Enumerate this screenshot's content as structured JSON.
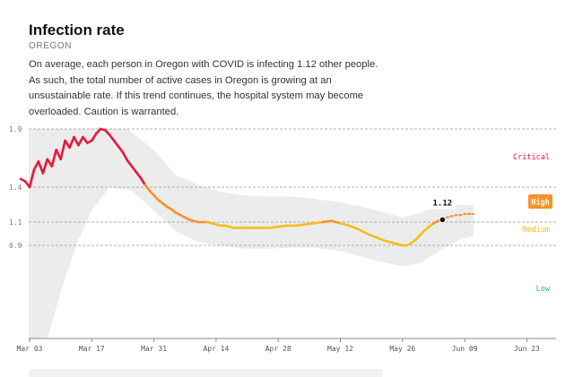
{
  "header": {
    "title": "Infection rate",
    "subtitle": "OREGON",
    "description": "On average, each person in Oregon with COVID is infecting 1.12 other people. As such, the total number of active cases in Oregon is growing at an unsustainable rate. If this trend continues, the hospital system may become overloaded. Caution is warranted."
  },
  "colors": {
    "critical": "#e8163b",
    "high": "#f5922a",
    "medium": "#f6bd16",
    "low": "#2bbf5a",
    "band": "#ececec",
    "grid": "#999999"
  },
  "chart_data": {
    "type": "line",
    "x_ticks": [
      "Mar 03",
      "Mar 17",
      "Mar 31",
      "Apr 14",
      "Apr 28",
      "May 12",
      "May 26",
      "Jun 09",
      "Jun 23"
    ],
    "y_ticks": [
      "1.9",
      "1.4",
      "1.1",
      "0.9"
    ],
    "ylim": [
      0.0,
      1.9
    ],
    "zones": [
      {
        "name": "Critical",
        "y": 1.9
      },
      {
        "name": "High",
        "y": 1.4
      },
      {
        "name": "Medium",
        "y": 1.1
      },
      {
        "name": "Low",
        "y": 0.9
      }
    ],
    "zone_labels": [
      "Critical",
      "High",
      "Medium",
      "Low"
    ],
    "current": {
      "date": "2020-06-04",
      "value": 1.12,
      "label": "1.12"
    },
    "series": [
      {
        "values": [
          [
            "2020-03-01",
            1.47
          ],
          [
            "2020-03-02",
            1.45
          ],
          [
            "2020-03-03",
            1.4
          ],
          [
            "2020-03-04",
            1.55
          ],
          [
            "2020-03-05",
            1.62
          ],
          [
            "2020-03-06",
            1.52
          ],
          [
            "2020-03-07",
            1.64
          ],
          [
            "2020-03-08",
            1.58
          ],
          [
            "2020-03-09",
            1.72
          ],
          [
            "2020-03-10",
            1.64
          ],
          [
            "2020-03-11",
            1.8
          ],
          [
            "2020-03-12",
            1.74
          ],
          [
            "2020-03-13",
            1.83
          ],
          [
            "2020-03-14",
            1.76
          ],
          [
            "2020-03-15",
            1.83
          ],
          [
            "2020-03-16",
            1.78
          ],
          [
            "2020-03-17",
            1.8
          ],
          [
            "2020-03-18",
            1.86
          ],
          [
            "2020-03-19",
            1.9
          ],
          [
            "2020-03-20",
            1.89
          ],
          [
            "2020-03-21",
            1.85
          ],
          [
            "2020-03-22",
            1.8
          ],
          [
            "2020-03-23",
            1.75
          ],
          [
            "2020-03-24",
            1.7
          ],
          [
            "2020-03-25",
            1.63
          ],
          [
            "2020-03-26",
            1.58
          ],
          [
            "2020-03-27",
            1.53
          ],
          [
            "2020-03-28",
            1.48
          ],
          [
            "2020-03-29",
            1.42
          ],
          [
            "2020-03-30",
            1.37
          ],
          [
            "2020-03-31",
            1.33
          ],
          [
            "2020-04-01",
            1.29
          ],
          [
            "2020-04-02",
            1.26
          ],
          [
            "2020-04-03",
            1.23
          ],
          [
            "2020-04-04",
            1.21
          ],
          [
            "2020-04-05",
            1.18
          ],
          [
            "2020-04-06",
            1.16
          ],
          [
            "2020-04-07",
            1.14
          ],
          [
            "2020-04-08",
            1.12
          ],
          [
            "2020-04-09",
            1.11
          ],
          [
            "2020-04-10",
            1.1
          ],
          [
            "2020-04-11",
            1.1
          ],
          [
            "2020-04-12",
            1.1
          ],
          [
            "2020-04-13",
            1.09
          ],
          [
            "2020-04-14",
            1.08
          ],
          [
            "2020-04-15",
            1.07
          ],
          [
            "2020-04-16",
            1.07
          ],
          [
            "2020-04-17",
            1.06
          ],
          [
            "2020-04-18",
            1.05
          ],
          [
            "2020-04-20",
            1.05
          ],
          [
            "2020-04-22",
            1.05
          ],
          [
            "2020-04-24",
            1.05
          ],
          [
            "2020-04-26",
            1.05
          ],
          [
            "2020-04-28",
            1.06
          ],
          [
            "2020-04-30",
            1.07
          ],
          [
            "2020-05-02",
            1.07
          ],
          [
            "2020-05-04",
            1.08
          ],
          [
            "2020-05-06",
            1.09
          ],
          [
            "2020-05-08",
            1.1
          ],
          [
            "2020-05-10",
            1.11
          ],
          [
            "2020-05-12",
            1.09
          ],
          [
            "2020-05-14",
            1.07
          ],
          [
            "2020-05-16",
            1.04
          ],
          [
            "2020-05-18",
            1.0
          ],
          [
            "2020-05-20",
            0.97
          ],
          [
            "2020-05-22",
            0.94
          ],
          [
            "2020-05-24",
            0.92
          ],
          [
            "2020-05-25",
            0.91
          ],
          [
            "2020-05-26",
            0.9
          ],
          [
            "2020-05-27",
            0.9
          ],
          [
            "2020-05-28",
            0.92
          ],
          [
            "2020-05-29",
            0.95
          ],
          [
            "2020-05-30",
            0.99
          ],
          [
            "2020-05-31",
            1.03
          ],
          [
            "2020-06-01",
            1.06
          ],
          [
            "2020-06-02",
            1.09
          ],
          [
            "2020-06-03",
            1.11
          ],
          [
            "2020-06-04",
            1.12
          ]
        ]
      },
      {
        "style": "dotted",
        "values": [
          [
            "2020-06-04",
            1.12
          ],
          [
            "2020-06-05",
            1.14
          ],
          [
            "2020-06-06",
            1.15
          ],
          [
            "2020-06-07",
            1.16
          ],
          [
            "2020-06-08",
            1.16
          ],
          [
            "2020-06-09",
            1.17
          ],
          [
            "2020-06-10",
            1.17
          ],
          [
            "2020-06-11",
            1.17
          ]
        ]
      }
    ],
    "band": {
      "upper": [
        [
          "2020-03-01",
          1.9
        ],
        [
          "2020-03-20",
          1.9
        ],
        [
          "2020-03-25",
          1.9
        ],
        [
          "2020-03-31",
          1.72
        ],
        [
          "2020-04-05",
          1.5
        ],
        [
          "2020-04-10",
          1.42
        ],
        [
          "2020-04-15",
          1.36
        ],
        [
          "2020-04-20",
          1.33
        ],
        [
          "2020-04-25",
          1.32
        ],
        [
          "2020-05-01",
          1.32
        ],
        [
          "2020-05-06",
          1.3
        ],
        [
          "2020-05-12",
          1.27
        ],
        [
          "2020-05-17",
          1.23
        ],
        [
          "2020-05-22",
          1.18
        ],
        [
          "2020-05-26",
          1.14
        ],
        [
          "2020-05-30",
          1.18
        ],
        [
          "2020-06-04",
          1.26
        ],
        [
          "2020-06-08",
          1.25
        ],
        [
          "2020-06-11",
          1.24
        ]
      ],
      "lower": [
        [
          "2020-03-01",
          0.0
        ],
        [
          "2020-03-04",
          0.0
        ],
        [
          "2020-03-07",
          0.1
        ],
        [
          "2020-03-10",
          0.5
        ],
        [
          "2020-03-14",
          0.95
        ],
        [
          "2020-03-17",
          1.2
        ],
        [
          "2020-03-21",
          1.4
        ],
        [
          "2020-03-26",
          1.37
        ],
        [
          "2020-03-31",
          1.2
        ],
        [
          "2020-04-05",
          1.02
        ],
        [
          "2020-04-10",
          0.93
        ],
        [
          "2020-04-15",
          0.9
        ],
        [
          "2020-04-20",
          0.87
        ],
        [
          "2020-04-25",
          0.87
        ],
        [
          "2020-05-01",
          0.88
        ],
        [
          "2020-05-06",
          0.88
        ],
        [
          "2020-05-12",
          0.85
        ],
        [
          "2020-05-17",
          0.8
        ],
        [
          "2020-05-22",
          0.75
        ],
        [
          "2020-05-26",
          0.72
        ],
        [
          "2020-05-30",
          0.75
        ],
        [
          "2020-06-04",
          0.87
        ],
        [
          "2020-06-08",
          0.95
        ],
        [
          "2020-06-11",
          0.98
        ]
      ]
    }
  }
}
